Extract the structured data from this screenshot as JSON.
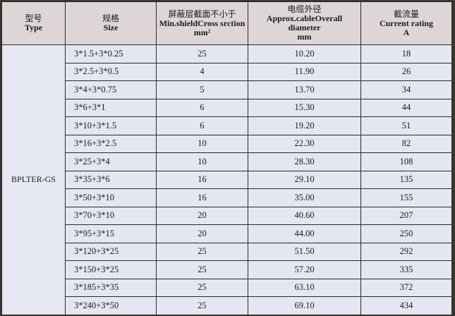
{
  "header": {
    "type": {
      "cn": "型号",
      "en": "Type"
    },
    "size": {
      "cn": "规格",
      "en": "Size"
    },
    "shield": {
      "cn": "屏蔽层截面不小于",
      "en": "Min.shieldCross srction",
      "unit": "mm²"
    },
    "diameter": {
      "cn": "电缆外径",
      "en": "Approx.cableOverall",
      "en2": "diameter",
      "unit": "mm"
    },
    "current": {
      "cn": "截流量",
      "en": "Current rating",
      "unit": "A"
    }
  },
  "type_value": "BPLTER-GS",
  "rows": [
    {
      "size": "3*1.5+3*0.25",
      "shield": "25",
      "diameter": "10.20",
      "current": "18"
    },
    {
      "size": "3*2.5+3*0.5",
      "shield": "4",
      "diameter": "11.90",
      "current": "26"
    },
    {
      "size": "3*4+3*0.75",
      "shield": "5",
      "diameter": "13.70",
      "current": "34"
    },
    {
      "size": "3*6+3*1",
      "shield": "6",
      "diameter": "15.30",
      "current": "44"
    },
    {
      "size": "3*10+3*1.5",
      "shield": "6",
      "diameter": "19.20",
      "current": "51"
    },
    {
      "size": "3*16+3*2.5",
      "shield": "10",
      "diameter": "22.30",
      "current": "82"
    },
    {
      "size": "3*25+3*4",
      "shield": "10",
      "diameter": "28.30",
      "current": "108"
    },
    {
      "size": "3*35+3*6",
      "shield": "16",
      "diameter": "29.10",
      "current": "135"
    },
    {
      "size": "3*50+3*10",
      "shield": "16",
      "diameter": "35.00",
      "current": "155"
    },
    {
      "size": "3*70+3*10",
      "shield": "20",
      "diameter": "40.60",
      "current": "207"
    },
    {
      "size": "3*95+3*15",
      "shield": "20",
      "diameter": "44.00",
      "current": "250"
    },
    {
      "size": "3*120+3*25",
      "shield": "25",
      "diameter": "51.50",
      "current": "292"
    },
    {
      "size": "3*150+3*25",
      "shield": "25",
      "diameter": "57.20",
      "current": "335"
    },
    {
      "size": "3*185+3*35",
      "shield": "25",
      "diameter": "63.10",
      "current": "372"
    },
    {
      "size": "3*240+3*50",
      "shield": "25",
      "diameter": "69.10",
      "current": "434"
    }
  ]
}
